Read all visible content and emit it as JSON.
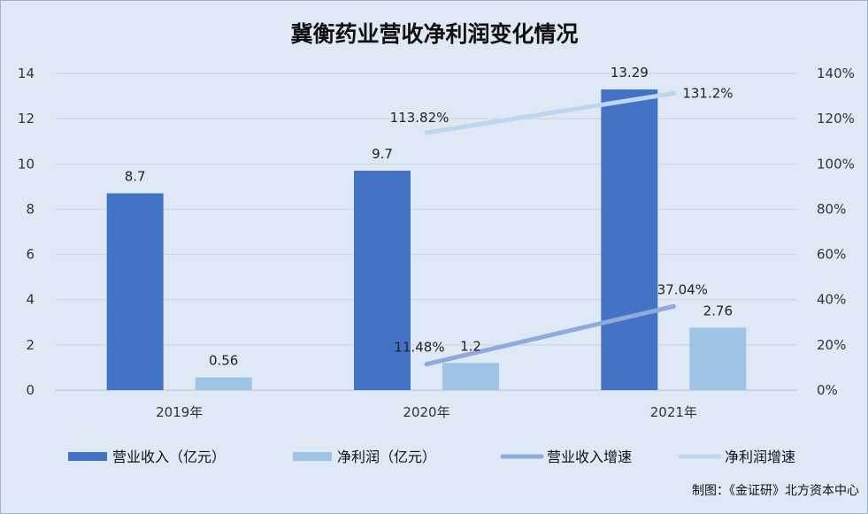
{
  "chart_data": {
    "type": "bar",
    "title": "冀衡药业营收净利润变化情况",
    "categories": [
      "2019年",
      "2020年",
      "2021年"
    ],
    "series": [
      {
        "name": "营业收入（亿元）",
        "kind": "bar",
        "axis": "left",
        "color": "#4472c4",
        "values": [
          8.7,
          9.7,
          13.29
        ],
        "labels": [
          "8.7",
          "9.7",
          "13.29"
        ]
      },
      {
        "name": "净利润（亿元）",
        "kind": "bar",
        "axis": "left",
        "color": "#9dc3e6",
        "values": [
          0.56,
          1.2,
          2.76
        ],
        "labels": [
          "0.56",
          "1.2",
          "2.76"
        ]
      },
      {
        "name": "营业收入增速",
        "kind": "line",
        "axis": "right",
        "color": "#8faadc",
        "values": [
          null,
          11.48,
          37.04
        ],
        "labels": [
          "",
          "11.48%",
          "37.04%"
        ]
      },
      {
        "name": "净利润增速",
        "kind": "line",
        "axis": "right",
        "color": "#bdd7ee",
        "values": [
          null,
          113.82,
          131.2
        ],
        "labels": [
          "",
          "113.82%",
          "131.2%"
        ]
      }
    ],
    "y_left": {
      "min": 0,
      "max": 14,
      "ticks": [
        "0",
        "2",
        "4",
        "6",
        "8",
        "10",
        "12",
        "14"
      ]
    },
    "y_right": {
      "min": 0,
      "max": 140,
      "ticks": [
        "0%",
        "20%",
        "40%",
        "60%",
        "80%",
        "100%",
        "120%",
        "140%"
      ]
    },
    "grid": true,
    "legend": "bottom"
  },
  "credit": "制图：《金证研》北方资本中心"
}
